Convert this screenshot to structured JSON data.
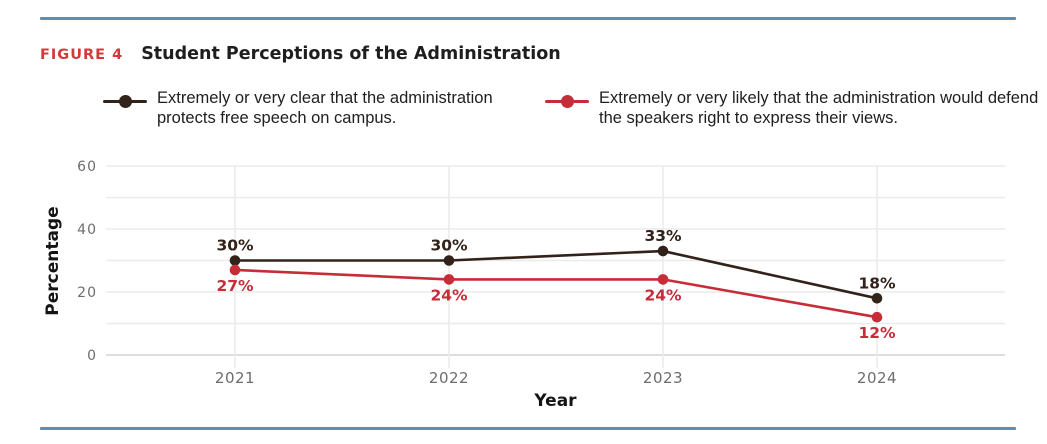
{
  "figure": {
    "tag": "FIGURE 4",
    "title": "Student Perceptions of the Administration"
  },
  "legend": [
    {
      "label": "Extremely or very clear that the administration protects free speech on campus.",
      "color": "#31221a"
    },
    {
      "label": "Extremely or very likely that the administration would defend the speakers right to express their views.",
      "color": "#c72c39"
    }
  ],
  "chart_data": {
    "type": "line",
    "x": [
      "2021",
      "2022",
      "2023",
      "2024"
    ],
    "series": [
      {
        "name": "Extremely or very clear that the administration protects free speech on campus.",
        "color": "#31221a",
        "values": [
          30,
          30,
          33,
          18
        ],
        "labels": [
          "30%",
          "30%",
          "33%",
          "18%"
        ],
        "label_position": "above"
      },
      {
        "name": "Extremely or very likely that the administration would defend the speakers right to express their views.",
        "color": "#c72c39",
        "values": [
          27,
          24,
          24,
          12
        ],
        "labels": [
          "27%",
          "24%",
          "24%",
          "12%"
        ],
        "label_position": "below"
      }
    ],
    "title": "Student Perceptions of the Administration",
    "xlabel": "Year",
    "ylabel": "Percentage",
    "ylim": [
      0,
      60
    ],
    "yticks": [
      0,
      20,
      40,
      60
    ],
    "gridline_step": 10,
    "grid": true,
    "legend_position": "top"
  },
  "colors": {
    "rule_blue": "#5b8fb3",
    "figure_tag_red": "#d23a3a",
    "series_dark": "#31221a",
    "series_red": "#c72c39",
    "tick_gray": "#6d6d6d",
    "gridline": "#ebebeb",
    "zero_line": "#d2d2d2"
  }
}
